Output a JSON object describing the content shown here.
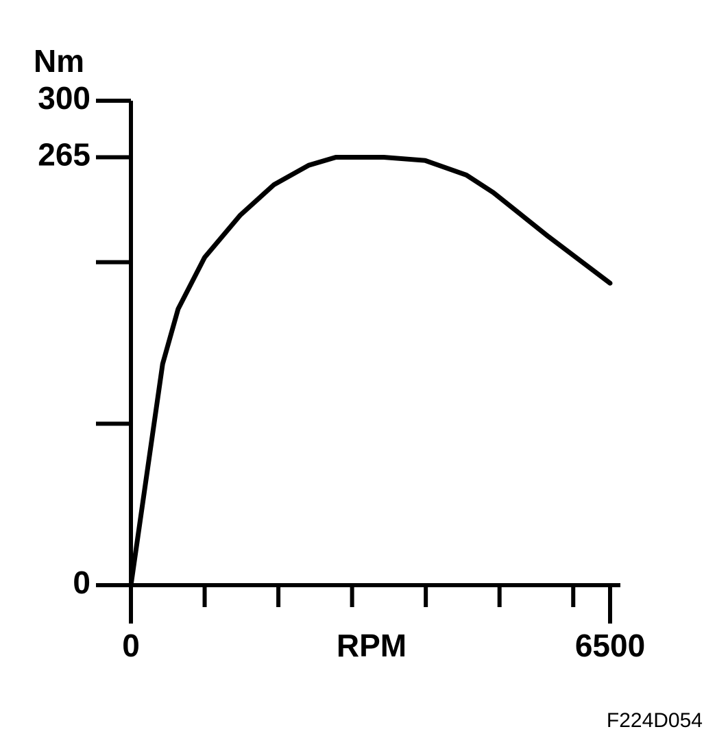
{
  "chart_data": {
    "type": "line",
    "y_label": "Nm",
    "x_label": "RPM",
    "code": "F224D054",
    "x": [
      0,
      430,
      640,
      1000,
      1480,
      1940,
      2410,
      2780,
      3430,
      3990,
      4550,
      4920,
      5660,
      6500
    ],
    "series": [
      {
        "color": "#000000",
        "values": [
          0,
          137,
          171,
          203,
          229,
          248,
          260,
          265,
          265,
          263,
          254,
          243,
          216,
          187
        ]
      }
    ],
    "xlim": [
      0,
      6500
    ],
    "ylim": [
      0,
      300
    ],
    "xticks": [
      0,
      {
        "value": 1000,
        "label": null
      },
      {
        "value": 2000,
        "label": null
      },
      {
        "value": 3000,
        "label": null
      },
      {
        "value": 4000,
        "label": null
      },
      {
        "value": 5000,
        "label": null
      },
      {
        "value": 6000,
        "label": null
      },
      6500
    ],
    "yticks": [
      0,
      {
        "value": 100,
        "label": null
      },
      {
        "value": 200,
        "label": null
      },
      265,
      300
    ]
  }
}
